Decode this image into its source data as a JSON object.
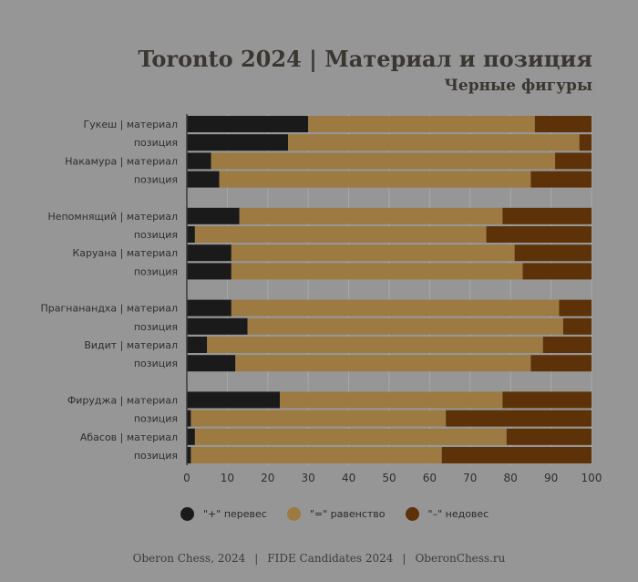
{
  "title": "Toronto 2024  | Материал и позиция",
  "subtitle": "Черные фигуры",
  "colors": {
    "plus": "#1a1a1a",
    "eq": "#9c7a42",
    "minus": "#5e3208",
    "background": "#969696"
  },
  "legend": [
    {
      "key": "plus",
      "label": "\"+\" перевес"
    },
    {
      "key": "eq",
      "label": "\"=\" равенство"
    },
    {
      "key": "minus",
      "label": "\"–\" недовес"
    }
  ],
  "footer": {
    "part1": "Oberon Chess, 2024",
    "part2": "FIDE Candidates 2024",
    "part3": "OberonChess.ru"
  },
  "chart_data": {
    "type": "bar",
    "orientation": "horizontal",
    "stacked": true,
    "xlim": [
      0,
      100
    ],
    "xticks": [
      0,
      10,
      20,
      30,
      40,
      50,
      60,
      70,
      80,
      90,
      100
    ],
    "grid": true,
    "legend_position": "bottom",
    "groups": [
      {
        "rows": [
          {
            "label": "Гукеш | материал",
            "plus": 30,
            "eq": 56,
            "minus": 14
          },
          {
            "label": "позиция",
            "plus": 25,
            "eq": 72,
            "minus": 3
          },
          {
            "label": "Накамура | материал",
            "plus": 6,
            "eq": 85,
            "minus": 9
          },
          {
            "label": "позиция",
            "plus": 8,
            "eq": 77,
            "minus": 15
          }
        ]
      },
      {
        "rows": [
          {
            "label": "Непомнящий | материал",
            "plus": 13,
            "eq": 65,
            "minus": 22
          },
          {
            "label": "позиция",
            "plus": 2,
            "eq": 72,
            "minus": 26
          },
          {
            "label": "Каруана | материал",
            "plus": 11,
            "eq": 70,
            "minus": 19
          },
          {
            "label": "позиция",
            "plus": 11,
            "eq": 72,
            "minus": 17
          }
        ]
      },
      {
        "rows": [
          {
            "label": "Прагнанандха | материал",
            "plus": 11,
            "eq": 81,
            "minus": 8
          },
          {
            "label": "позиция",
            "plus": 15,
            "eq": 78,
            "minus": 7
          },
          {
            "label": "Видит | материал",
            "plus": 5,
            "eq": 83,
            "minus": 12
          },
          {
            "label": "позиция",
            "plus": 12,
            "eq": 73,
            "minus": 15
          }
        ]
      },
      {
        "rows": [
          {
            "label": "Фируджа | материал",
            "plus": 23,
            "eq": 55,
            "minus": 22
          },
          {
            "label": "позиция",
            "plus": 1,
            "eq": 63,
            "minus": 36
          },
          {
            "label": "Абасов | материал",
            "plus": 2,
            "eq": 77,
            "minus": 21
          },
          {
            "label": "позиция",
            "plus": 1,
            "eq": 62,
            "minus": 37
          }
        ]
      }
    ]
  }
}
